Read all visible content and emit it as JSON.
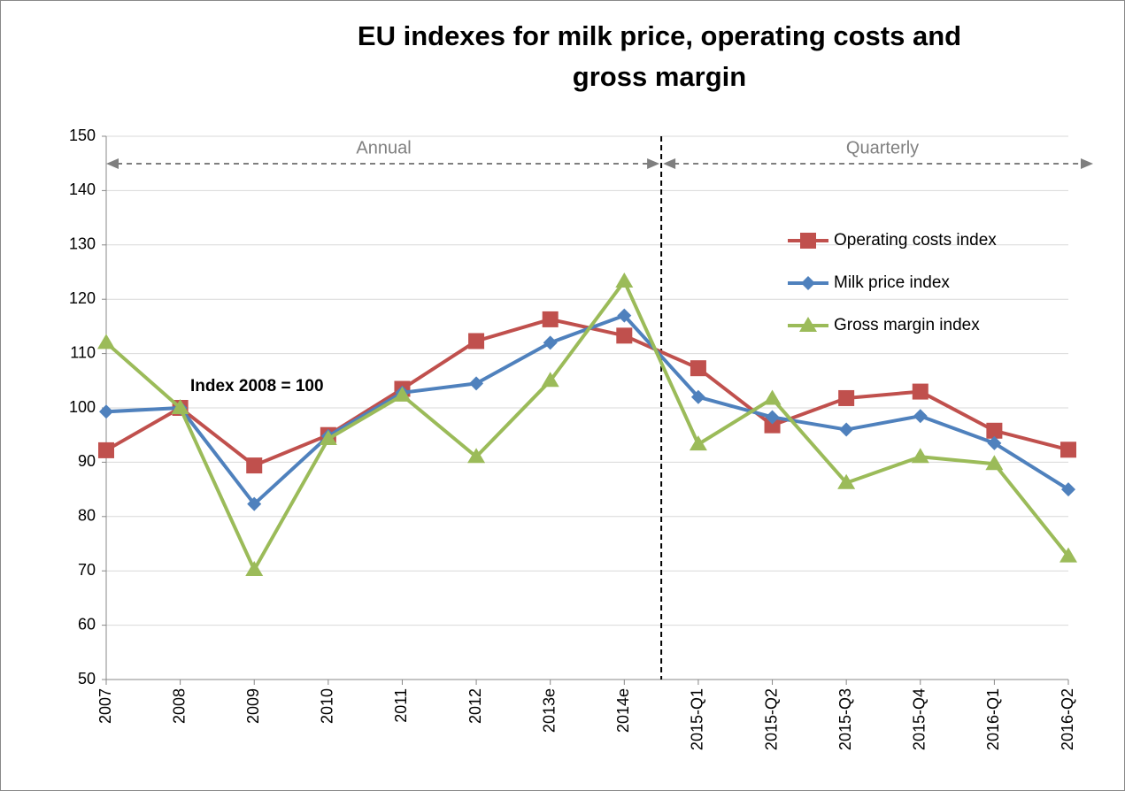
{
  "chart_data": {
    "type": "line",
    "title": "EU indexes for milk price, operating costs and gross margin",
    "categories": [
      "2007",
      "2008",
      "2009",
      "2010",
      "2011",
      "2012",
      "2013e",
      "2014e",
      "2015-Q1",
      "2015-Q2",
      "2015-Q3",
      "2015-Q4",
      "2016-Q1",
      "2016-Q2"
    ],
    "series": [
      {
        "name": "Operating costs index",
        "color": "#c0504d",
        "marker": "square",
        "values": [
          92.2,
          100,
          89.4,
          95,
          103.5,
          112.3,
          116.3,
          113.3,
          107.3,
          96.8,
          101.8,
          103,
          95.8,
          92.3
        ]
      },
      {
        "name": "Milk price index",
        "color": "#4f81bd",
        "marker": "diamond",
        "values": [
          99.3,
          100,
          82.3,
          94.8,
          102.8,
          104.5,
          112,
          117,
          102,
          98.3,
          96,
          98.5,
          93.5,
          85
        ]
      },
      {
        "name": "Gross margin index",
        "color": "#9bbb59",
        "marker": "triangle",
        "values": [
          112,
          100,
          70.2,
          94.3,
          102.3,
          91,
          105,
          123.3,
          93.3,
          101.7,
          86.2,
          91,
          89.7,
          72.7
        ]
      }
    ],
    "ylim": [
      50,
      150
    ],
    "yticks": [
      50,
      60,
      70,
      80,
      90,
      100,
      110,
      120,
      130,
      140,
      150
    ],
    "grid": true,
    "annotations": {
      "annual": "Annual",
      "quarterly": "Quarterly",
      "index": "Index 2008 = 100"
    },
    "legend": "right"
  }
}
